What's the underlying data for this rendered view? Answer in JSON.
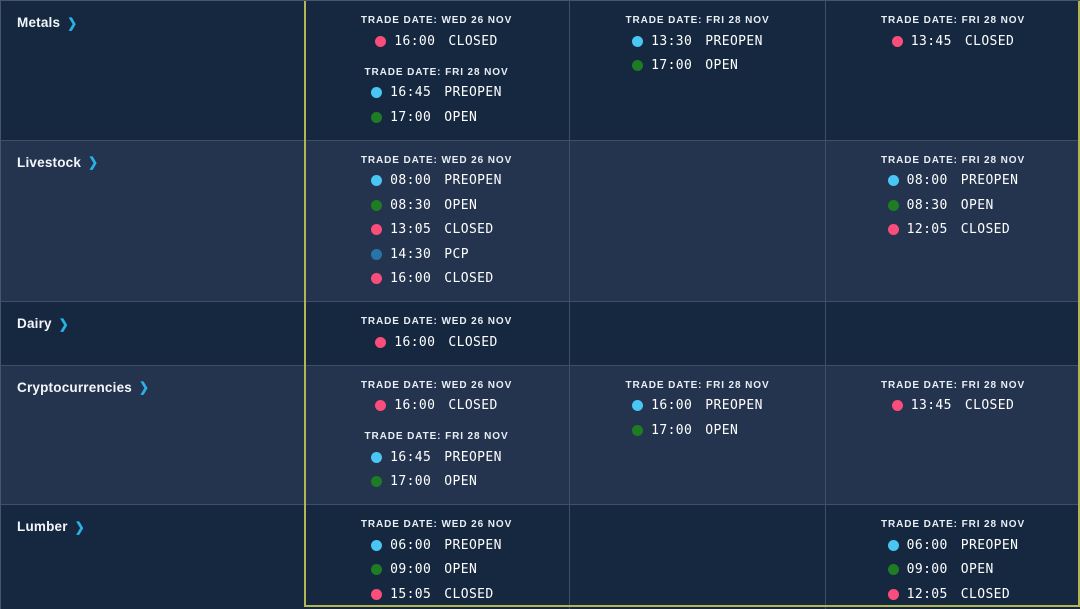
{
  "table": {
    "chevron_icon": "❯",
    "status_colors": {
      "CLOSED": "#fa4d7c",
      "PREOPEN": "#49c6f4",
      "OPEN": "#1e7c22",
      "PCP": "#2874a8"
    },
    "highlight_color": "#b2b754",
    "rows": [
      {
        "category": "Metals",
        "shade": "dark",
        "cells": [
          {
            "groups": [
              {
                "date_label": "TRADE DATE: WED 26 NOV",
                "entries": [
                  {
                    "time": "16:00",
                    "status": "CLOSED"
                  }
                ]
              },
              {
                "date_label": "TRADE DATE: FRI 28 NOV",
                "entries": [
                  {
                    "time": "16:45",
                    "status": "PREOPEN"
                  },
                  {
                    "time": "17:00",
                    "status": "OPEN"
                  }
                ]
              }
            ]
          },
          {
            "groups": [
              {
                "date_label": "TRADE DATE: FRI 28 NOV",
                "entries": [
                  {
                    "time": "13:30",
                    "status": "PREOPEN"
                  },
                  {
                    "time": "17:00",
                    "status": "OPEN"
                  }
                ]
              }
            ]
          },
          {
            "groups": [
              {
                "date_label": "TRADE DATE: FRI 28 NOV",
                "entries": [
                  {
                    "time": "13:45",
                    "status": "CLOSED"
                  }
                ]
              }
            ]
          }
        ]
      },
      {
        "category": "Livestock",
        "shade": "light",
        "cells": [
          {
            "groups": [
              {
                "date_label": "TRADE DATE: WED 26 NOV",
                "entries": [
                  {
                    "time": "08:00",
                    "status": "PREOPEN"
                  },
                  {
                    "time": "08:30",
                    "status": "OPEN"
                  },
                  {
                    "time": "13:05",
                    "status": "CLOSED"
                  },
                  {
                    "time": "14:30",
                    "status": "PCP"
                  },
                  {
                    "time": "16:00",
                    "status": "CLOSED"
                  }
                ]
              }
            ]
          },
          {
            "groups": []
          },
          {
            "groups": [
              {
                "date_label": "TRADE DATE: FRI 28 NOV",
                "entries": [
                  {
                    "time": "08:00",
                    "status": "PREOPEN"
                  },
                  {
                    "time": "08:30",
                    "status": "OPEN"
                  },
                  {
                    "time": "12:05",
                    "status": "CLOSED"
                  }
                ]
              }
            ]
          }
        ]
      },
      {
        "category": "Dairy",
        "shade": "dark",
        "cells": [
          {
            "groups": [
              {
                "date_label": "TRADE DATE: WED 26 NOV",
                "entries": [
                  {
                    "time": "16:00",
                    "status": "CLOSED"
                  }
                ]
              }
            ]
          },
          {
            "groups": []
          },
          {
            "groups": []
          }
        ]
      },
      {
        "category": "Cryptocurrencies",
        "shade": "light",
        "cells": [
          {
            "groups": [
              {
                "date_label": "TRADE DATE: WED 26 NOV",
                "entries": [
                  {
                    "time": "16:00",
                    "status": "CLOSED"
                  }
                ]
              },
              {
                "date_label": "TRADE DATE: FRI 28 NOV",
                "entries": [
                  {
                    "time": "16:45",
                    "status": "PREOPEN"
                  },
                  {
                    "time": "17:00",
                    "status": "OPEN"
                  }
                ]
              }
            ]
          },
          {
            "groups": [
              {
                "date_label": "TRADE DATE: FRI 28 NOV",
                "entries": [
                  {
                    "time": "16:00",
                    "status": "PREOPEN"
                  },
                  {
                    "time": "17:00",
                    "status": "OPEN"
                  }
                ]
              }
            ]
          },
          {
            "groups": [
              {
                "date_label": "TRADE DATE: FRI 28 NOV",
                "entries": [
                  {
                    "time": "13:45",
                    "status": "CLOSED"
                  }
                ]
              }
            ]
          }
        ]
      },
      {
        "category": "Lumber",
        "shade": "dark",
        "cells": [
          {
            "groups": [
              {
                "date_label": "TRADE DATE: WED 26 NOV",
                "entries": [
                  {
                    "time": "06:00",
                    "status": "PREOPEN"
                  },
                  {
                    "time": "09:00",
                    "status": "OPEN"
                  },
                  {
                    "time": "15:05",
                    "status": "CLOSED"
                  }
                ]
              }
            ]
          },
          {
            "groups": []
          },
          {
            "groups": [
              {
                "date_label": "TRADE DATE: FRI 28 NOV",
                "entries": [
                  {
                    "time": "06:00",
                    "status": "PREOPEN"
                  },
                  {
                    "time": "09:00",
                    "status": "OPEN"
                  },
                  {
                    "time": "12:05",
                    "status": "CLOSED"
                  }
                ]
              }
            ]
          }
        ]
      }
    ]
  }
}
